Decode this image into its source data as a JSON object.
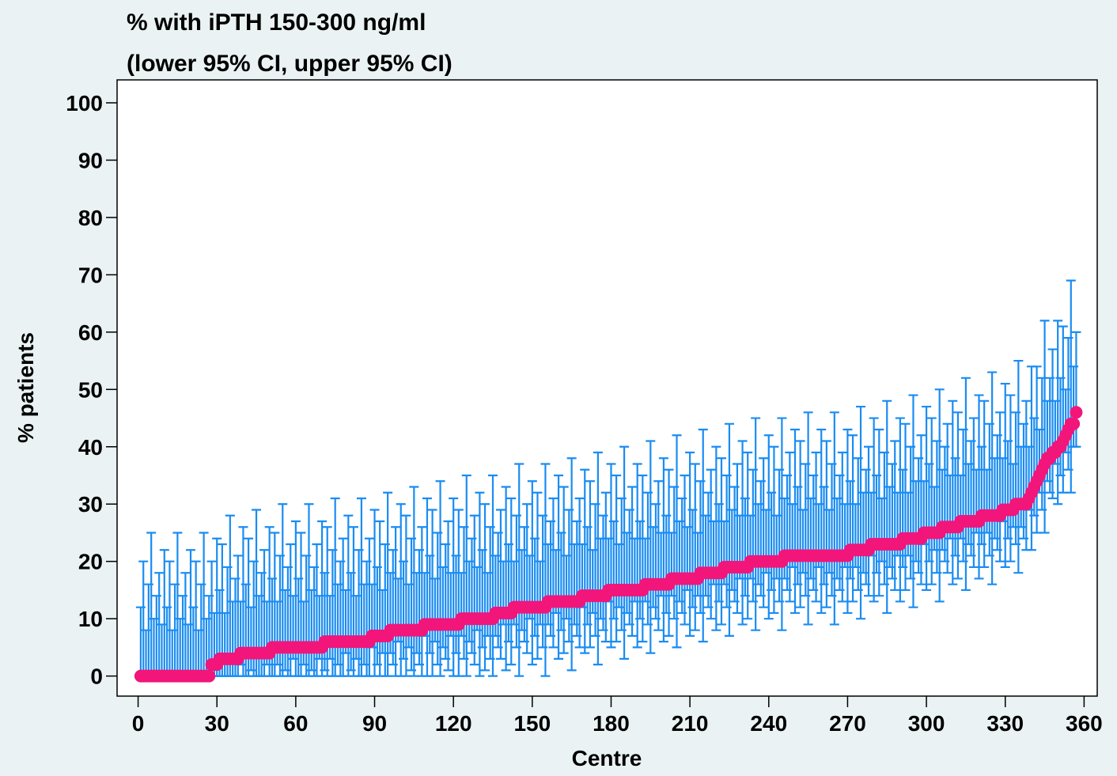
{
  "chart_data": {
    "type": "errorbar",
    "title": "% with iPTH 150-300 ng/ml",
    "subtitle": "(lower 95% CI, upper 95% CI)",
    "xlabel": "Centre",
    "ylabel": "% patients",
    "bar_color": "#1a8cf2",
    "point_color": "#f2157a",
    "xlim": [
      -8,
      365
    ],
    "ylim": [
      -3.5,
      104
    ],
    "xticks": [
      0,
      30,
      60,
      90,
      120,
      150,
      180,
      210,
      240,
      270,
      300,
      330,
      360
    ],
    "yticks": [
      0,
      10,
      20,
      30,
      40,
      50,
      60,
      70,
      80,
      90,
      100
    ],
    "x": [
      1,
      2,
      3,
      4,
      5,
      6,
      7,
      8,
      9,
      10,
      11,
      12,
      13,
      14,
      15,
      16,
      17,
      18,
      19,
      20,
      21,
      22,
      23,
      24,
      25,
      26,
      27,
      28,
      29,
      30,
      31,
      32,
      33,
      34,
      35,
      36,
      37,
      38,
      39,
      40,
      41,
      42,
      43,
      44,
      45,
      46,
      47,
      48,
      49,
      50,
      51,
      52,
      53,
      54,
      55,
      56,
      57,
      58,
      59,
      60,
      61,
      62,
      63,
      64,
      65,
      66,
      67,
      68,
      69,
      70,
      71,
      72,
      73,
      74,
      75,
      76,
      77,
      78,
      79,
      80,
      81,
      82,
      83,
      84,
      85,
      86,
      87,
      88,
      89,
      90,
      91,
      92,
      93,
      94,
      95,
      96,
      97,
      98,
      99,
      100,
      101,
      102,
      103,
      104,
      105,
      106,
      107,
      108,
      109,
      110,
      111,
      112,
      113,
      114,
      115,
      116,
      117,
      118,
      119,
      120,
      121,
      122,
      123,
      124,
      125,
      126,
      127,
      128,
      129,
      130,
      131,
      132,
      133,
      134,
      135,
      136,
      137,
      138,
      139,
      140,
      141,
      142,
      143,
      144,
      145,
      146,
      147,
      148,
      149,
      150,
      151,
      152,
      153,
      154,
      155,
      156,
      157,
      158,
      159,
      160,
      161,
      162,
      163,
      164,
      165,
      166,
      167,
      168,
      169,
      170,
      171,
      172,
      173,
      174,
      175,
      176,
      177,
      178,
      179,
      180,
      181,
      182,
      183,
      184,
      185,
      186,
      187,
      188,
      189,
      190,
      191,
      192,
      193,
      194,
      195,
      196,
      197,
      198,
      199,
      200,
      201,
      202,
      203,
      204,
      205,
      206,
      207,
      208,
      209,
      210,
      211,
      212,
      213,
      214,
      215,
      216,
      217,
      218,
      219,
      220,
      221,
      222,
      223,
      224,
      225,
      226,
      227,
      228,
      229,
      230,
      231,
      232,
      233,
      234,
      235,
      236,
      237,
      238,
      239,
      240,
      241,
      242,
      243,
      244,
      245,
      246,
      247,
      248,
      249,
      250,
      251,
      252,
      253,
      254,
      255,
      256,
      257,
      258,
      259,
      260,
      261,
      262,
      263,
      264,
      265,
      266,
      267,
      268,
      269,
      270,
      271,
      272,
      273,
      274,
      275,
      276,
      277,
      278,
      279,
      280,
      281,
      282,
      283,
      284,
      285,
      286,
      287,
      288,
      289,
      290,
      291,
      292,
      293,
      294,
      295,
      296,
      297,
      298,
      299,
      300,
      301,
      302,
      303,
      304,
      305,
      306,
      307,
      308,
      309,
      310,
      311,
      312,
      313,
      314,
      315,
      316,
      317,
      318,
      319,
      320,
      321,
      322,
      323,
      324,
      325,
      326,
      327,
      328,
      329,
      330,
      331,
      332,
      333,
      334,
      335,
      336,
      337,
      338,
      339,
      340,
      341,
      342,
      343,
      344,
      345,
      346,
      347,
      348,
      349,
      350,
      351,
      352,
      353,
      354,
      355,
      356,
      357
    ],
    "values": [
      0,
      0,
      0,
      0,
      0,
      0,
      0,
      0,
      0,
      0,
      0,
      0,
      0,
      0,
      0,
      0,
      0,
      0,
      0,
      0,
      0,
      0,
      0,
      0,
      0,
      0,
      0,
      2,
      2,
      2,
      3,
      3,
      3,
      3,
      3,
      3,
      3,
      3,
      4,
      4,
      4,
      4,
      4,
      4,
      4,
      4,
      4,
      4,
      4,
      4,
      5,
      5,
      5,
      5,
      5,
      5,
      5,
      5,
      5,
      5,
      5,
      5,
      5,
      5,
      5,
      5,
      5,
      5,
      5,
      5,
      6,
      6,
      6,
      6,
      6,
      6,
      6,
      6,
      6,
      6,
      6,
      6,
      6,
      6,
      6,
      6,
      6,
      6,
      7,
      7,
      7,
      7,
      7,
      7,
      7,
      8,
      8,
      8,
      8,
      8,
      8,
      8,
      8,
      8,
      8,
      8,
      8,
      8,
      9,
      9,
      9,
      9,
      9,
      9,
      9,
      9,
      9,
      9,
      9,
      9,
      9,
      9,
      10,
      10,
      10,
      10,
      10,
      10,
      10,
      10,
      10,
      10,
      10,
      10,
      10,
      11,
      11,
      11,
      11,
      11,
      11,
      11,
      12,
      12,
      12,
      12,
      12,
      12,
      12,
      12,
      12,
      12,
      12,
      12,
      12,
      13,
      13,
      13,
      13,
      13,
      13,
      13,
      13,
      13,
      13,
      13,
      13,
      13,
      14,
      14,
      14,
      14,
      14,
      14,
      14,
      14,
      14,
      14,
      15,
      15,
      15,
      15,
      15,
      15,
      15,
      15,
      15,
      15,
      15,
      15,
      15,
      15,
      16,
      16,
      16,
      16,
      16,
      16,
      16,
      16,
      16,
      16,
      17,
      17,
      17,
      17,
      17,
      17,
      17,
      17,
      17,
      17,
      17,
      18,
      18,
      18,
      18,
      18,
      18,
      18,
      18,
      18,
      19,
      19,
      19,
      19,
      19,
      19,
      19,
      19,
      19,
      19,
      20,
      20,
      20,
      20,
      20,
      20,
      20,
      20,
      20,
      20,
      20,
      20,
      20,
      21,
      21,
      21,
      21,
      21,
      21,
      21,
      21,
      21,
      21,
      21,
      21,
      21,
      21,
      21,
      21,
      21,
      21,
      21,
      21,
      21,
      21,
      21,
      21,
      21,
      22,
      22,
      22,
      22,
      22,
      22,
      22,
      22,
      23,
      23,
      23,
      23,
      23,
      23,
      23,
      23,
      23,
      23,
      23,
      23,
      24,
      24,
      24,
      24,
      24,
      24,
      24,
      24,
      25,
      25,
      25,
      25,
      25,
      25,
      25,
      26,
      26,
      26,
      26,
      26,
      26,
      26,
      27,
      27,
      27,
      27,
      27,
      27,
      27,
      27,
      28,
      28,
      28,
      28,
      28,
      28,
      28,
      28,
      29,
      29,
      29,
      29,
      29,
      30,
      30,
      30,
      30,
      30,
      31,
      32,
      33,
      34,
      35,
      36,
      37,
      38,
      38,
      39,
      39,
      40,
      40,
      41,
      42,
      43,
      44,
      44,
      46
    ],
    "upper": [
      12,
      20,
      8,
      16,
      25,
      10,
      14,
      18,
      9,
      22,
      12,
      20,
      8,
      16,
      25,
      10,
      14,
      18,
      9,
      22,
      12,
      20,
      8,
      16,
      25,
      10,
      14,
      20,
      11,
      24,
      15,
      23,
      11,
      19,
      28,
      13,
      17,
      21,
      13,
      26,
      16,
      24,
      12,
      20,
      29,
      14,
      18,
      22,
      13,
      26,
      17,
      25,
      13,
      21,
      30,
      15,
      19,
      23,
      14,
      27,
      17,
      25,
      13,
      21,
      30,
      15,
      19,
      23,
      14,
      27,
      18,
      26,
      14,
      22,
      31,
      16,
      20,
      24,
      15,
      28,
      18,
      26,
      14,
      22,
      31,
      16,
      20,
      24,
      16,
      29,
      19,
      27,
      15,
      23,
      32,
      18,
      22,
      26,
      17,
      30,
      20,
      28,
      16,
      24,
      33,
      18,
      22,
      26,
      18,
      31,
      21,
      29,
      17,
      25,
      34,
      19,
      23,
      27,
      18,
      31,
      21,
      29,
      18,
      26,
      35,
      20,
      24,
      28,
      19,
      32,
      22,
      30,
      18,
      26,
      35,
      21,
      25,
      29,
      20,
      33,
      23,
      31,
      20,
      28,
      37,
      22,
      26,
      30,
      21,
      34,
      24,
      32,
      20,
      28,
      37,
      23,
      27,
      31,
      22,
      35,
      25,
      33,
      21,
      29,
      38,
      23,
      27,
      31,
      23,
      36,
      26,
      34,
      22,
      30,
      39,
      24,
      28,
      32,
      24,
      37,
      27,
      35,
      23,
      31,
      40,
      25,
      29,
      33,
      24,
      37,
      27,
      35,
      24,
      32,
      41,
      26,
      30,
      34,
      25,
      38,
      28,
      36,
      25,
      33,
      42,
      27,
      31,
      35,
      26,
      39,
      29,
      37,
      25,
      34,
      43,
      28,
      32,
      36,
      27,
      40,
      30,
      38,
      27,
      35,
      44,
      29,
      33,
      37,
      28,
      41,
      31,
      39,
      28,
      36,
      45,
      30,
      34,
      38,
      29,
      42,
      32,
      40,
      28,
      36,
      45,
      31,
      35,
      39,
      30,
      43,
      33,
      41,
      29,
      37,
      46,
      31,
      35,
      39,
      30,
      43,
      33,
      41,
      29,
      37,
      46,
      31,
      35,
      39,
      30,
      43,
      34,
      42,
      30,
      38,
      47,
      32,
      36,
      40,
      32,
      45,
      35,
      43,
      31,
      39,
      48,
      33,
      37,
      41,
      32,
      45,
      36,
      44,
      32,
      40,
      49,
      34,
      38,
      42,
      34,
      47,
      37,
      45,
      33,
      41,
      50,
      36,
      40,
      44,
      35,
      48,
      38,
      46,
      35,
      43,
      52,
      37,
      41,
      45,
      36,
      49,
      40,
      48,
      36,
      44,
      53,
      38,
      42,
      46,
      38,
      51,
      41,
      49,
      37,
      46,
      55,
      40,
      44,
      48,
      40,
      54,
      45,
      54,
      43,
      52,
      62,
      48,
      52,
      57,
      48,
      62,
      52,
      61,
      50,
      59,
      69,
      54,
      60
    ],
    "lower": [
      0,
      0,
      0,
      0,
      0,
      0,
      0,
      0,
      0,
      0,
      0,
      0,
      0,
      0,
      0,
      0,
      0,
      0,
      0,
      0,
      0,
      0,
      0,
      0,
      0,
      0,
      0,
      0,
      0,
      0,
      0,
      0,
      0,
      0,
      0,
      0,
      0,
      0,
      2,
      0,
      0,
      0,
      1,
      0,
      0,
      0,
      0,
      0,
      2,
      0,
      0,
      0,
      2,
      0,
      0,
      1,
      0,
      0,
      3,
      0,
      0,
      0,
      2,
      0,
      0,
      1,
      0,
      0,
      3,
      0,
      1,
      0,
      3,
      0,
      0,
      2,
      0,
      0,
      4,
      0,
      1,
      0,
      3,
      0,
      0,
      2,
      0,
      0,
      5,
      0,
      2,
      0,
      4,
      0,
      0,
      4,
      2,
      0,
      6,
      0,
      3,
      0,
      5,
      1,
      0,
      4,
      2,
      0,
      7,
      0,
      4,
      0,
      6,
      2,
      0,
      5,
      3,
      1,
      7,
      0,
      4,
      0,
      7,
      3,
      0,
      6,
      4,
      2,
      8,
      0,
      5,
      1,
      7,
      3,
      0,
      7,
      5,
      3,
      9,
      1,
      6,
      2,
      9,
      5,
      0,
      8,
      6,
      4,
      10,
      2,
      7,
      3,
      9,
      5,
      0,
      9,
      7,
      5,
      11,
      3,
      8,
      4,
      10,
      6,
      1,
      9,
      7,
      5,
      12,
      4,
      9,
      5,
      11,
      7,
      2,
      10,
      8,
      6,
      13,
      5,
      10,
      6,
      12,
      8,
      3,
      11,
      9,
      7,
      13,
      5,
      10,
      6,
      13,
      9,
      4,
      12,
      10,
      8,
      14,
      6,
      11,
      7,
      14,
      10,
      5,
      13,
      11,
      9,
      15,
      7,
      12,
      8,
      14,
      11,
      6,
      14,
      12,
      10,
      16,
      8,
      13,
      9,
      16,
      12,
      7,
      15,
      13,
      11,
      17,
      9,
      14,
      10,
      17,
      13,
      8,
      16,
      14,
      12,
      18,
      10,
      15,
      11,
      17,
      13,
      8,
      17,
      15,
      13,
      19,
      11,
      16,
      12,
      18,
      14,
      9,
      17,
      15,
      13,
      19,
      11,
      16,
      12,
      18,
      14,
      9,
      17,
      15,
      13,
      19,
      11,
      17,
      13,
      19,
      15,
      10,
      18,
      16,
      14,
      21,
      13,
      18,
      14,
      20,
      16,
      11,
      19,
      17,
      15,
      21,
      13,
      19,
      15,
      21,
      17,
      12,
      20,
      18,
      16,
      23,
      15,
      20,
      16,
      22,
      18,
      13,
      22,
      20,
      18,
      24,
      16,
      21,
      17,
      24,
      20,
      15,
      23,
      21,
      19,
      25,
      17,
      23,
      19,
      25,
      21,
      16,
      24,
      22,
      20,
      27,
      19,
      24,
      20,
      26,
      23,
      18,
      26,
      24,
      22,
      29,
      22,
      28,
      25,
      32,
      29,
      25,
      34,
      32,
      31,
      37,
      30,
      35,
      32,
      39,
      36,
      32,
      40,
      40
    ]
  }
}
